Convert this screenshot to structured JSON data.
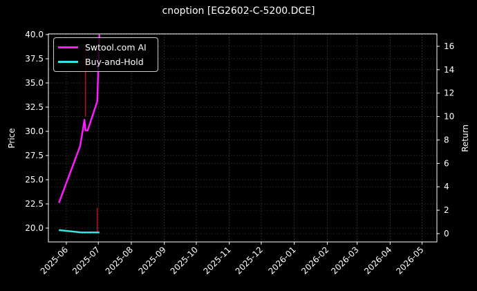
{
  "title": "cnoption [EG2602-C-5200.DCE]",
  "colors": {
    "background": "#000000",
    "strategy": "#ff1aff",
    "buy_and_hold": "#33e6e6",
    "signal": "#e01010",
    "grid": "#555555",
    "axes": "#ffffff"
  },
  "legend": {
    "items": [
      {
        "label": "Swtool.com AI",
        "color": "#ff1aff"
      },
      {
        "label": "Buy-and-Hold",
        "color": "#33e6e6"
      }
    ]
  },
  "axes": {
    "left": {
      "label": "Price",
      "ticks": [
        "40.0",
        "37.5",
        "35.0",
        "32.5",
        "30.0",
        "27.5",
        "25.0",
        "22.5",
        "20.0"
      ]
    },
    "right": {
      "label": "Return",
      "ticks": [
        "16",
        "14",
        "12",
        "10",
        "8",
        "6",
        "4",
        "2",
        "0"
      ]
    },
    "x": {
      "ticks": [
        "2025-06",
        "2025-07",
        "2025-08",
        "2025-09",
        "2025-10",
        "2025-11",
        "2025-12",
        "2026-01",
        "2026-02",
        "2026-03",
        "2026-04",
        "2026-05"
      ]
    }
  },
  "chart_data": {
    "type": "line",
    "title": "cnoption [EG2602-C-5200.DCE]",
    "xlabel": "",
    "ylabel": "Price",
    "y2label": "Return",
    "ylim": [
      18.6,
      40.0
    ],
    "y2lim": [
      -0.8,
      17
    ],
    "x_ticks": [
      "2025-06",
      "2025-07",
      "2025-08",
      "2025-09",
      "2025-10",
      "2025-11",
      "2025-12",
      "2026-01",
      "2026-02",
      "2026-03",
      "2026-04",
      "2026-05"
    ],
    "grid": true,
    "legend_position": "upper left",
    "series": [
      {
        "name": "Swtool.com AI",
        "axis": "left",
        "color": "#ff1aff",
        "x": [
          "2025-05-25",
          "2025-06-14",
          "2025-06-18",
          "2025-06-19",
          "2025-06-21",
          "2025-06-30",
          "2025-07-02"
        ],
        "values": [
          22.6,
          28.5,
          31.2,
          30.1,
          30.1,
          33.1,
          40.0
        ]
      },
      {
        "name": "Buy-and-Hold",
        "axis": "right",
        "color": "#33e6e6",
        "x": [
          "2025-05-25",
          "2025-06-15",
          "2025-07-02"
        ],
        "values": [
          0.3,
          0.1,
          0.1
        ]
      }
    ],
    "annotations": [
      {
        "type": "vline",
        "x": "2025-06-19",
        "color": "#e01010",
        "y_range": [
          31.5,
          38.7
        ]
      },
      {
        "type": "vline",
        "x": "2025-06-30",
        "color": "#e01010",
        "y_range": [
          19.6,
          22.1
        ]
      }
    ]
  }
}
